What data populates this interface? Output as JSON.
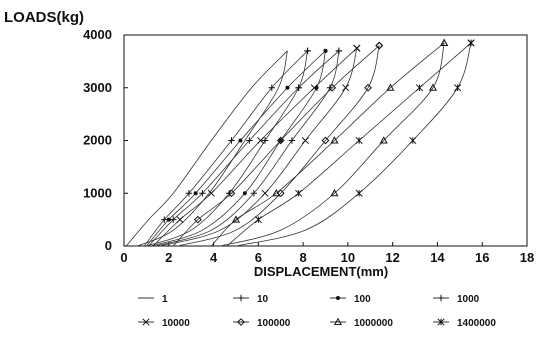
{
  "chart_data": {
    "type": "line",
    "ylabel": "LOADS(kg)",
    "xlabel": "DISPLACEMENT(mm)",
    "xlim": [
      0,
      18
    ],
    "ylim": [
      0,
      4000
    ],
    "x_ticks": [
      "0",
      "2",
      "4",
      "6",
      "8",
      "10",
      "12",
      "14",
      "16",
      "18"
    ],
    "y_ticks": [
      "0",
      "1000",
      "2000",
      "3000",
      "4000"
    ],
    "grid": false,
    "legend_position": "bottom",
    "series": [
      {
        "name": "1",
        "marker": "none",
        "load_x": [
          [
            0.1,
            0
          ],
          [
            1.1,
            500
          ],
          [
            2.2,
            1000
          ],
          [
            3.9,
            2000
          ],
          [
            5.7,
            3000
          ],
          [
            7.3,
            3700
          ]
        ],
        "unload_x": [
          [
            7.3,
            3700
          ],
          [
            6.9,
            3000
          ],
          [
            5.4,
            2000
          ],
          [
            3.8,
            1000
          ],
          [
            2.2,
            300
          ],
          [
            0.6,
            0
          ]
        ]
      },
      {
        "name": "10",
        "marker": "plus",
        "load_x": [
          [
            0.9,
            0
          ],
          [
            1.8,
            500
          ],
          [
            2.9,
            1000
          ],
          [
            4.8,
            2000
          ],
          [
            6.6,
            3000
          ],
          [
            8.2,
            3700
          ]
        ],
        "unload_x": [
          [
            8.2,
            3700
          ],
          [
            7.8,
            3000
          ],
          [
            6.3,
            2000
          ],
          [
            4.7,
            1000
          ],
          [
            3.0,
            300
          ],
          [
            1.0,
            0
          ]
        ]
      },
      {
        "name": "100",
        "marker": "dot",
        "load_x": [
          [
            1.0,
            0
          ],
          [
            2.0,
            500
          ],
          [
            3.2,
            1000
          ],
          [
            5.2,
            2000
          ],
          [
            7.3,
            3000
          ],
          [
            9.0,
            3700
          ]
        ],
        "unload_x": [
          [
            9.0,
            3700
          ],
          [
            8.6,
            3000
          ],
          [
            7.0,
            2000
          ],
          [
            5.4,
            1000
          ],
          [
            3.5,
            300
          ],
          [
            1.2,
            0
          ]
        ]
      },
      {
        "name": "1000",
        "marker": "plus",
        "load_x": [
          [
            1.1,
            0
          ],
          [
            2.2,
            500
          ],
          [
            3.5,
            1000
          ],
          [
            5.6,
            2000
          ],
          [
            7.8,
            3000
          ],
          [
            9.6,
            3700
          ]
        ],
        "unload_x": [
          [
            9.6,
            3700
          ],
          [
            9.2,
            3000
          ],
          [
            7.5,
            2000
          ],
          [
            5.8,
            1000
          ],
          [
            3.9,
            300
          ],
          [
            1.4,
            0
          ]
        ]
      },
      {
        "name": "10000",
        "marker": "x",
        "load_x": [
          [
            1.3,
            0
          ],
          [
            2.5,
            500
          ],
          [
            3.9,
            1000
          ],
          [
            6.1,
            2000
          ],
          [
            8.5,
            3000
          ],
          [
            10.4,
            3750
          ]
        ],
        "unload_x": [
          [
            10.4,
            3750
          ],
          [
            9.9,
            3000
          ],
          [
            8.1,
            2000
          ],
          [
            6.3,
            1000
          ],
          [
            4.3,
            300
          ],
          [
            1.6,
            0
          ]
        ]
      },
      {
        "name": "100000",
        "marker": "diamond",
        "load_x": [
          [
            2.2,
            0
          ],
          [
            3.3,
            500
          ],
          [
            4.8,
            1000
          ],
          [
            7.0,
            2000
          ],
          [
            9.3,
            3000
          ],
          [
            11.4,
            3800
          ]
        ],
        "unload_x": [
          [
            11.4,
            3800
          ],
          [
            10.9,
            3000
          ],
          [
            9.0,
            2000
          ],
          [
            7.0,
            1000
          ],
          [
            5.0,
            300
          ],
          [
            2.4,
            0
          ]
        ]
      },
      {
        "name": "1000000",
        "marker": "triangle",
        "load_x": [
          [
            3.9,
            0
          ],
          [
            5.0,
            500
          ],
          [
            6.8,
            1000
          ],
          [
            9.4,
            2000
          ],
          [
            11.9,
            3000
          ],
          [
            14.3,
            3850
          ]
        ],
        "unload_x": [
          [
            14.3,
            3850
          ],
          [
            13.8,
            3000
          ],
          [
            11.6,
            2000
          ],
          [
            9.4,
            1000
          ],
          [
            7.0,
            300
          ],
          [
            4.3,
            0
          ]
        ]
      },
      {
        "name": "1400000",
        "marker": "asterisk",
        "load_x": [
          [
            4.6,
            0
          ],
          [
            6.0,
            500
          ],
          [
            7.8,
            1000
          ],
          [
            10.5,
            2000
          ],
          [
            13.2,
            3000
          ],
          [
            15.5,
            3850
          ]
        ],
        "unload_x": [
          [
            15.5,
            3850
          ],
          [
            14.9,
            3000
          ],
          [
            12.9,
            2000
          ],
          [
            10.5,
            1000
          ],
          [
            8.1,
            300
          ],
          [
            5.0,
            0
          ]
        ]
      }
    ]
  }
}
